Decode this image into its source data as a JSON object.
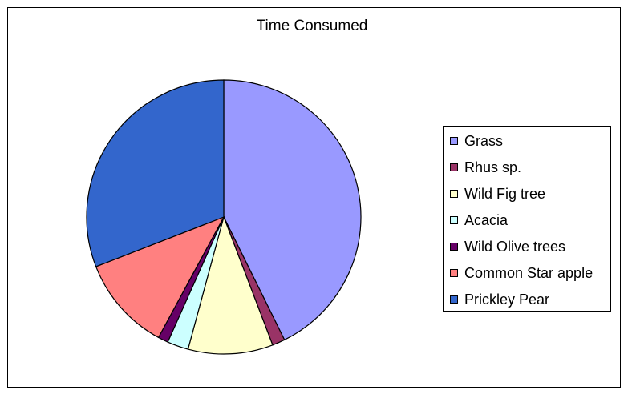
{
  "chart_data": {
    "type": "pie",
    "title": "Time Consumed",
    "legend_position": "right",
    "categories": [
      "Grass",
      "Rhus sp.",
      "Wild Fig tree",
      "Acacia",
      "Wild Olive trees",
      "Common Star apple",
      "Prickley Pear"
    ],
    "values": [
      42.7,
      1.5,
      10.0,
      2.5,
      1.2,
      11.2,
      30.9
    ],
    "colors": [
      "#9999ff",
      "#993366",
      "#ffffcc",
      "#ccffff",
      "#660066",
      "#ff8080",
      "#3366cc"
    ]
  }
}
